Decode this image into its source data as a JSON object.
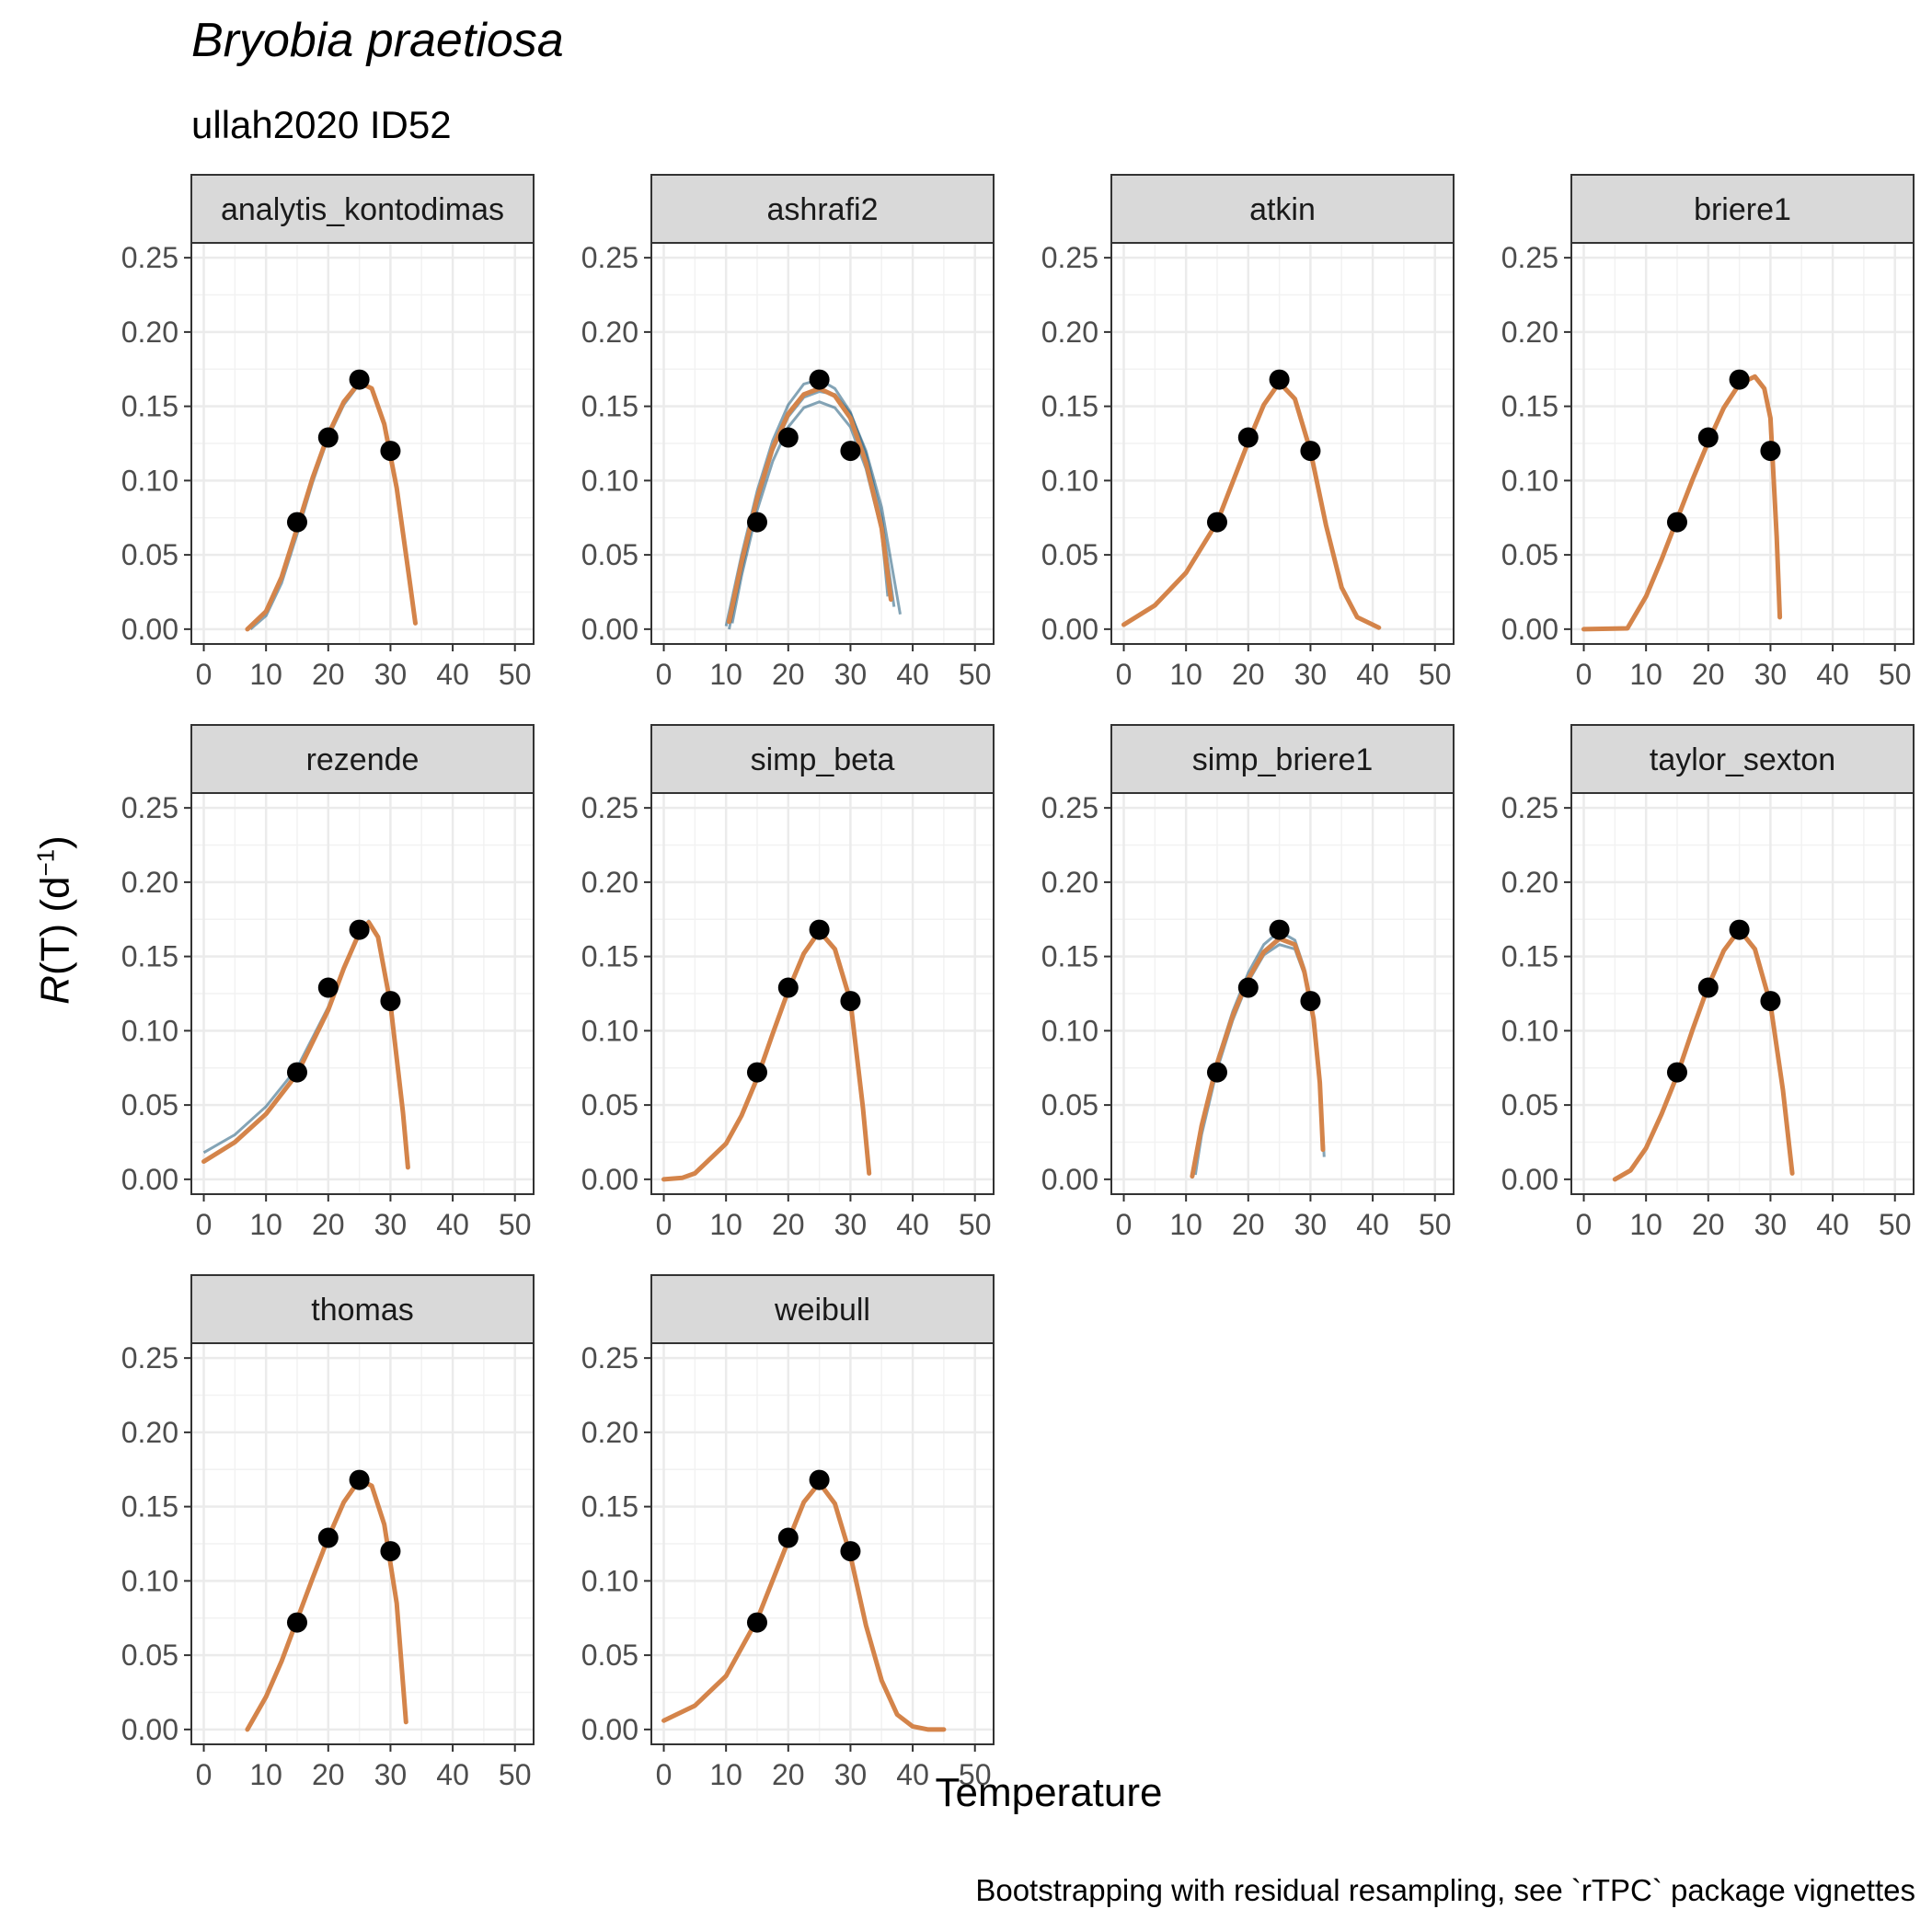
{
  "title": "Bryobia praetiosa",
  "subtitle": "ullah2020 ID52",
  "caption": "Bootstrapping with residual resampling, see `rTPC` package vignettes",
  "colors": {
    "fit": "#D4844A",
    "bootstrap": "#1F5A7A",
    "points": "#000000",
    "strip_fill": "#D9D9D9",
    "grid": "#EBEBEB"
  },
  "chart_data": {
    "type": "line",
    "xlabel": "Temperature",
    "ylabel": {
      "italic": "R",
      "rest": "(T) (d",
      "sup": "−1",
      "close": ")"
    },
    "xlim": [
      -2,
      53
    ],
    "ylim": [
      -0.01,
      0.26
    ],
    "x_ticks": [
      "0",
      "10",
      "20",
      "30",
      "40",
      "50"
    ],
    "y_ticks": [
      "0.00",
      "0.05",
      "0.10",
      "0.15",
      "0.20",
      "0.25"
    ],
    "observed": {
      "x": [
        15,
        20,
        25,
        30
      ],
      "y": [
        0.072,
        0.129,
        0.168,
        0.12
      ]
    },
    "panels": [
      {
        "name": "analytis_kontodimas",
        "fit": [
          [
            7,
            0
          ],
          [
            10,
            0.012
          ],
          [
            12.5,
            0.035
          ],
          [
            15,
            0.068
          ],
          [
            17.5,
            0.102
          ],
          [
            20,
            0.131
          ],
          [
            22.5,
            0.153
          ],
          [
            25,
            0.166
          ],
          [
            27,
            0.162
          ],
          [
            29,
            0.138
          ],
          [
            31,
            0.095
          ],
          [
            33,
            0.035
          ],
          [
            34,
            0.004
          ]
        ],
        "boot": [
          [
            [
              7.5,
              0
            ],
            [
              10,
              0.009
            ],
            [
              12.5,
              0.031
            ],
            [
              15,
              0.064
            ],
            [
              17.5,
              0.099
            ],
            [
              20,
              0.129
            ],
            [
              22.5,
              0.151
            ],
            [
              25,
              0.165
            ],
            [
              27,
              0.162
            ],
            [
              29,
              0.139
            ],
            [
              31,
              0.096
            ],
            [
              33,
              0.036
            ],
            [
              34,
              0.005
            ]
          ]
        ]
      },
      {
        "name": "ashrafi2",
        "fit": [
          [
            10.5,
            0.005
          ],
          [
            12.5,
            0.045
          ],
          [
            15,
            0.088
          ],
          [
            17.5,
            0.122
          ],
          [
            20,
            0.145
          ],
          [
            22.5,
            0.158
          ],
          [
            25,
            0.162
          ],
          [
            27.5,
            0.157
          ],
          [
            30,
            0.142
          ],
          [
            32.5,
            0.112
          ],
          [
            35,
            0.068
          ],
          [
            36.5,
            0.02
          ]
        ],
        "boot": [
          [
            [
              10,
              0.002
            ],
            [
              12.5,
              0.05
            ],
            [
              15,
              0.093
            ],
            [
              17.5,
              0.127
            ],
            [
              20,
              0.151
            ],
            [
              22.5,
              0.165
            ],
            [
              25,
              0.168
            ],
            [
              27.5,
              0.162
            ],
            [
              30,
              0.146
            ],
            [
              32.5,
              0.118
            ],
            [
              35,
              0.075
            ],
            [
              37,
              0.015
            ]
          ],
          [
            [
              11,
              0.004
            ],
            [
              12.5,
              0.036
            ],
            [
              15,
              0.08
            ],
            [
              17.5,
              0.113
            ],
            [
              20,
              0.136
            ],
            [
              22.5,
              0.149
            ],
            [
              25,
              0.153
            ],
            [
              27.5,
              0.149
            ],
            [
              30,
              0.136
            ],
            [
              32.5,
              0.108
            ],
            [
              35,
              0.066
            ],
            [
              36,
              0.022
            ]
          ],
          [
            [
              10.5,
              0
            ],
            [
              12.5,
              0.04
            ],
            [
              15,
              0.085
            ],
            [
              17.5,
              0.12
            ],
            [
              20,
              0.143
            ],
            [
              22.5,
              0.156
            ],
            [
              25,
              0.16
            ],
            [
              27.5,
              0.158
            ],
            [
              30,
              0.145
            ],
            [
              32.5,
              0.12
            ],
            [
              35,
              0.082
            ],
            [
              38,
              0.01
            ]
          ]
        ]
      },
      {
        "name": "atkin",
        "fit": [
          [
            0,
            0.003
          ],
          [
            5,
            0.016
          ],
          [
            10,
            0.038
          ],
          [
            15,
            0.072
          ],
          [
            20,
            0.126
          ],
          [
            22.5,
            0.151
          ],
          [
            25,
            0.166
          ],
          [
            27.5,
            0.155
          ],
          [
            30,
            0.12
          ],
          [
            32.5,
            0.07
          ],
          [
            35,
            0.028
          ],
          [
            37.5,
            0.008
          ],
          [
            41,
            0.001
          ]
        ],
        "boot": []
      },
      {
        "name": "briere1",
        "fit": [
          [
            0,
            0
          ],
          [
            7,
            0.0005
          ],
          [
            10,
            0.022
          ],
          [
            12.5,
            0.047
          ],
          [
            15,
            0.074
          ],
          [
            17.5,
            0.101
          ],
          [
            20,
            0.126
          ],
          [
            22.5,
            0.149
          ],
          [
            25,
            0.165
          ],
          [
            27.5,
            0.17
          ],
          [
            29,
            0.162
          ],
          [
            30,
            0.142
          ],
          [
            31,
            0.062
          ],
          [
            31.5,
            0.008
          ]
        ],
        "boot": []
      },
      {
        "name": "rezende",
        "fit": [
          [
            0,
            0.012
          ],
          [
            5,
            0.025
          ],
          [
            10,
            0.044
          ],
          [
            15,
            0.071
          ],
          [
            20,
            0.114
          ],
          [
            22.5,
            0.142
          ],
          [
            25,
            0.166
          ],
          [
            26.5,
            0.173
          ],
          [
            28,
            0.163
          ],
          [
            30,
            0.118
          ],
          [
            32,
            0.045
          ],
          [
            32.8,
            0.008
          ]
        ],
        "boot": [
          [
            [
              0,
              0.018
            ],
            [
              5,
              0.03
            ],
            [
              10,
              0.049
            ],
            [
              15,
              0.075
            ],
            [
              20,
              0.116
            ],
            [
              22.5,
              0.143
            ],
            [
              25,
              0.166
            ],
            [
              26.5,
              0.174
            ],
            [
              28,
              0.164
            ],
            [
              30,
              0.12
            ],
            [
              32,
              0.048
            ],
            [
              32.8,
              0.01
            ]
          ]
        ]
      },
      {
        "name": "simp_beta",
        "fit": [
          [
            0,
            0
          ],
          [
            3,
            0.001
          ],
          [
            5,
            0.004
          ],
          [
            10,
            0.024
          ],
          [
            12.5,
            0.043
          ],
          [
            15,
            0.068
          ],
          [
            17.5,
            0.098
          ],
          [
            20,
            0.127
          ],
          [
            22.5,
            0.152
          ],
          [
            25,
            0.167
          ],
          [
            27.5,
            0.155
          ],
          [
            30,
            0.12
          ],
          [
            32,
            0.048
          ],
          [
            33,
            0.004
          ]
        ],
        "boot": []
      },
      {
        "name": "simp_briere1",
        "fit": [
          [
            11,
            0.002
          ],
          [
            12.5,
            0.036
          ],
          [
            15,
            0.078
          ],
          [
            17.5,
            0.11
          ],
          [
            20,
            0.135
          ],
          [
            22.5,
            0.153
          ],
          [
            25,
            0.162
          ],
          [
            27.5,
            0.158
          ],
          [
            29,
            0.14
          ],
          [
            30.5,
            0.108
          ],
          [
            31.5,
            0.065
          ],
          [
            32,
            0.02
          ]
        ],
        "boot": [
          [
            [
              11.5,
              0.003
            ],
            [
              12.5,
              0.03
            ],
            [
              15,
              0.074
            ],
            [
              17.5,
              0.107
            ],
            [
              20,
              0.133
            ],
            [
              22.5,
              0.151
            ],
            [
              25,
              0.158
            ],
            [
              27.5,
              0.155
            ],
            [
              29,
              0.138
            ],
            [
              30.5,
              0.108
            ],
            [
              31.5,
              0.068
            ],
            [
              32.2,
              0.015
            ]
          ],
          [
            [
              11,
              0.001
            ],
            [
              12.5,
              0.037
            ],
            [
              15,
              0.08
            ],
            [
              17.5,
              0.113
            ],
            [
              20,
              0.139
            ],
            [
              22.5,
              0.158
            ],
            [
              25,
              0.167
            ],
            [
              27.5,
              0.161
            ],
            [
              29,
              0.142
            ],
            [
              30.5,
              0.106
            ],
            [
              31.5,
              0.062
            ],
            [
              32,
              0.025
            ]
          ]
        ]
      },
      {
        "name": "taylor_sexton",
        "fit": [
          [
            5,
            0
          ],
          [
            7.5,
            0.006
          ],
          [
            10,
            0.021
          ],
          [
            12.5,
            0.044
          ],
          [
            15,
            0.07
          ],
          [
            17.5,
            0.101
          ],
          [
            20,
            0.13
          ],
          [
            22.5,
            0.154
          ],
          [
            25,
            0.168
          ],
          [
            27.5,
            0.155
          ],
          [
            30,
            0.118
          ],
          [
            32,
            0.06
          ],
          [
            33.5,
            0.004
          ]
        ],
        "boot": []
      },
      {
        "name": "thomas",
        "fit": [
          [
            7,
            0
          ],
          [
            10,
            0.022
          ],
          [
            12.5,
            0.046
          ],
          [
            15,
            0.074
          ],
          [
            17.5,
            0.102
          ],
          [
            20,
            0.129
          ],
          [
            22.5,
            0.153
          ],
          [
            25,
            0.168
          ],
          [
            27,
            0.164
          ],
          [
            29,
            0.138
          ],
          [
            31,
            0.085
          ],
          [
            32.5,
            0.005
          ]
        ],
        "boot": []
      },
      {
        "name": "weibull",
        "fit": [
          [
            0,
            0.006
          ],
          [
            5,
            0.016
          ],
          [
            10,
            0.036
          ],
          [
            15,
            0.074
          ],
          [
            20,
            0.127
          ],
          [
            22.5,
            0.153
          ],
          [
            25,
            0.166
          ],
          [
            27.5,
            0.152
          ],
          [
            30,
            0.117
          ],
          [
            32.5,
            0.07
          ],
          [
            35,
            0.033
          ],
          [
            37.5,
            0.01
          ],
          [
            40,
            0.002
          ],
          [
            42.5,
            0
          ],
          [
            45,
            0
          ]
        ],
        "boot": []
      }
    ]
  }
}
